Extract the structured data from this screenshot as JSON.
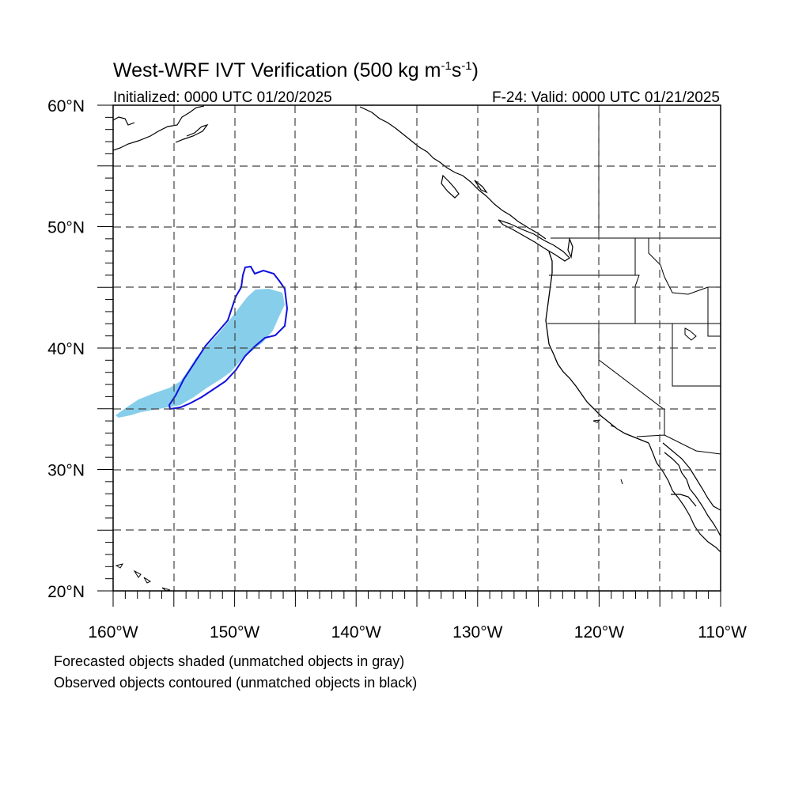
{
  "title": {
    "main": "West-WRF IVT Verification (500 kg m",
    "sup1": "-1",
    "mid": "s",
    "sup2": "-1",
    "close": ")"
  },
  "initialized": "Initialized: 0000 UTC 01/20/2025",
  "valid": "F-24: Valid: 0000 UTC 01/21/2025",
  "lat_labels": [
    {
      "text": "60°N",
      "lat": 60
    },
    {
      "text": "50°N",
      "lat": 50
    },
    {
      "text": "40°N",
      "lat": 40
    },
    {
      "text": "30°N",
      "lat": 30
    },
    {
      "text": "20°N",
      "lat": 20
    }
  ],
  "lon_labels": [
    {
      "text": "160°W",
      "lon": -160
    },
    {
      "text": "150°W",
      "lon": -150
    },
    {
      "text": "140°W",
      "lon": -140
    },
    {
      "text": "130°W",
      "lon": -130
    },
    {
      "text": "120°W",
      "lon": -120
    },
    {
      "text": "110°W",
      "lon": -110
    }
  ],
  "legend": [
    "Forecasted objects shaded (unmatched objects in gray)",
    "Observed objects contoured (unmatched objects in black)"
  ],
  "map_extent": {
    "lon_min": -160,
    "lon_max": -110,
    "lat_min": 20,
    "lat_max": 60
  },
  "colors": {
    "forecast_fill": "#87ceeb",
    "observed_contour": "#1010e0",
    "coast": "#000000",
    "grid": "#555555"
  }
}
